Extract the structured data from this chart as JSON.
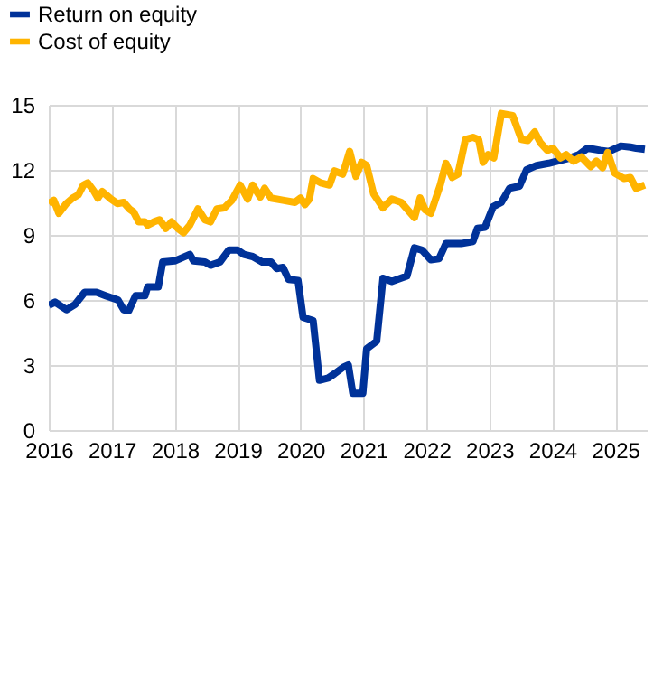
{
  "chart_data": {
    "type": "line",
    "legend": "top left",
    "grid": true,
    "xlim": [
      2016,
      2025.5
    ],
    "xticks": [
      2016,
      2017,
      2018,
      2019,
      2020,
      2021,
      2022,
      2023,
      2024,
      2025
    ],
    "ylim": [
      0,
      15
    ],
    "yticks": [
      0,
      3,
      6,
      9,
      12,
      15
    ],
    "series": [
      {
        "name": "Return on equity",
        "color": "#003299",
        "x": [
          2016.0,
          2016.1,
          2016.28,
          2016.42,
          2016.57,
          2016.76,
          2016.9,
          2017.1,
          2017.19,
          2017.27,
          2017.38,
          2017.53,
          2017.57,
          2017.74,
          2017.81,
          2018.0,
          2018.24,
          2018.3,
          2018.48,
          2018.57,
          2018.72,
          2018.86,
          2019.0,
          2019.1,
          2019.24,
          2019.39,
          2019.53,
          2019.62,
          2019.72,
          2019.81,
          2019.96,
          2020.04,
          2020.2,
          2020.3,
          2020.44,
          2020.54,
          2020.68,
          2020.76,
          2020.83,
          2020.99,
          2021.05,
          2021.21,
          2021.31,
          2021.45,
          2021.69,
          2021.81,
          2021.93,
          2022.07,
          2022.2,
          2022.31,
          2022.55,
          2022.74,
          2022.81,
          2022.93,
          2023.06,
          2023.19,
          2023.32,
          2023.48,
          2023.59,
          2023.75,
          2023.94,
          2024.08,
          2024.28,
          2024.42,
          2024.56,
          2024.76,
          2024.9,
          2025.09,
          2025.24,
          2025.33,
          2025.47
        ],
        "values": [
          5.75,
          5.9,
          5.55,
          5.8,
          6.35,
          6.35,
          6.2,
          6.0,
          5.55,
          5.5,
          6.2,
          6.2,
          6.6,
          6.6,
          7.75,
          7.8,
          8.1,
          7.8,
          7.75,
          7.6,
          7.75,
          8.3,
          8.3,
          8.1,
          8.0,
          7.75,
          7.75,
          7.45,
          7.5,
          6.95,
          6.9,
          5.2,
          5.05,
          2.3,
          2.4,
          2.6,
          2.9,
          3.0,
          1.7,
          1.7,
          3.75,
          4.1,
          7.0,
          6.85,
          7.1,
          8.4,
          8.3,
          7.85,
          7.9,
          8.6,
          8.6,
          8.7,
          9.3,
          9.35,
          10.3,
          10.5,
          11.15,
          11.25,
          12.0,
          12.2,
          12.3,
          12.4,
          12.55,
          12.7,
          13.0,
          12.9,
          12.85,
          13.1,
          13.05,
          13.0,
          12.95
        ]
      },
      {
        "name": "Cost of equity",
        "color": "#ffb400",
        "x": [
          2016.0,
          2016.08,
          2016.16,
          2016.28,
          2016.38,
          2016.47,
          2016.55,
          2016.62,
          2016.71,
          2016.78,
          2016.85,
          2016.99,
          2017.09,
          2017.19,
          2017.28,
          2017.35,
          2017.43,
          2017.53,
          2017.57,
          2017.67,
          2017.76,
          2017.86,
          2017.95,
          2018.05,
          2018.14,
          2018.24,
          2018.37,
          2018.48,
          2018.57,
          2018.67,
          2018.79,
          2018.91,
          2019.04,
          2019.16,
          2019.24,
          2019.36,
          2019.43,
          2019.53,
          2019.72,
          2019.91,
          2020.0,
          2020.07,
          2020.14,
          2020.2,
          2020.32,
          2020.46,
          2020.54,
          2020.67,
          2020.78,
          2020.88,
          2020.97,
          2021.05,
          2021.16,
          2021.31,
          2021.45,
          2021.6,
          2021.72,
          2021.81,
          2021.9,
          2021.98,
          2022.07,
          2022.22,
          2022.31,
          2022.41,
          2022.5,
          2022.62,
          2022.74,
          2022.83,
          2022.9,
          2022.98,
          2023.07,
          2023.19,
          2023.37,
          2023.51,
          2023.61,
          2023.72,
          2023.81,
          2023.92,
          2024.01,
          2024.13,
          2024.22,
          2024.34,
          2024.46,
          2024.61,
          2024.7,
          2024.8,
          2024.88,
          2024.99,
          2025.14,
          2025.24,
          2025.33,
          2025.47
        ],
        "values": [
          10.45,
          10.6,
          10.0,
          10.45,
          10.7,
          10.85,
          11.3,
          11.4,
          11.05,
          10.7,
          11.0,
          10.65,
          10.45,
          10.5,
          10.2,
          10.05,
          9.6,
          9.6,
          9.45,
          9.6,
          9.7,
          9.3,
          9.6,
          9.3,
          9.1,
          9.45,
          10.2,
          9.7,
          9.6,
          10.2,
          10.25,
          10.6,
          11.3,
          10.65,
          11.3,
          10.75,
          11.15,
          10.7,
          10.6,
          10.5,
          10.7,
          10.4,
          10.65,
          11.6,
          11.4,
          11.3,
          11.95,
          11.8,
          12.85,
          11.7,
          12.35,
          12.2,
          10.9,
          10.25,
          10.65,
          10.5,
          10.1,
          9.8,
          10.7,
          10.15,
          10.0,
          11.3,
          12.3,
          11.65,
          11.8,
          13.4,
          13.5,
          13.4,
          12.35,
          12.7,
          12.55,
          14.6,
          14.5,
          13.4,
          13.35,
          13.75,
          13.25,
          12.9,
          13.0,
          12.55,
          12.7,
          12.4,
          12.6,
          12.15,
          12.4,
          12.1,
          12.8,
          11.85,
          11.6,
          11.65,
          11.15,
          11.3
        ]
      }
    ]
  }
}
